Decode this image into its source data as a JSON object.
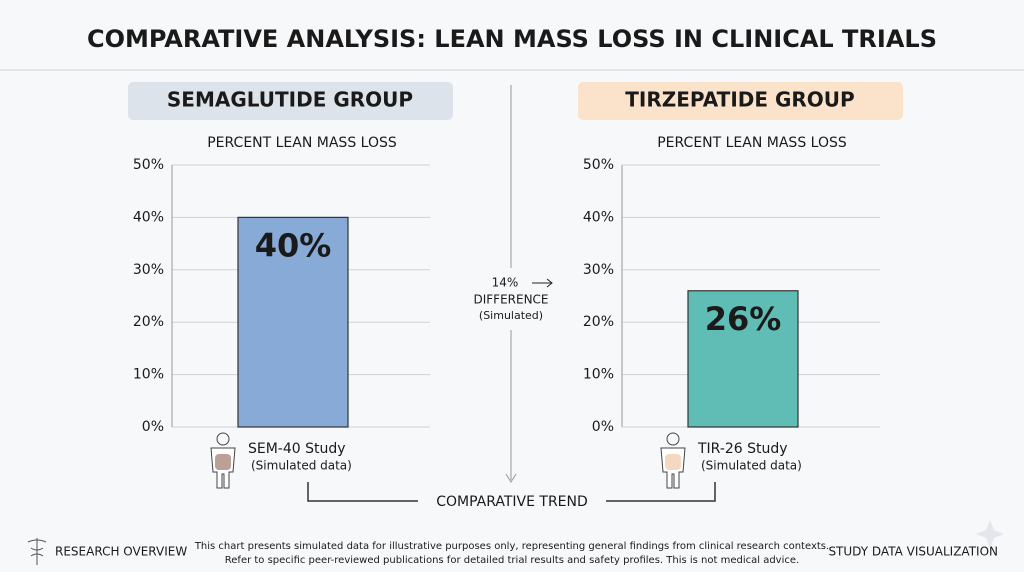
{
  "header": {
    "title": "COMPARATIVE ANALYSIS: LEAN MASS LOSS IN CLINICAL TRIALS"
  },
  "chart_data": [
    {
      "type": "bar",
      "group": "SEMAGLUTIDE GROUP",
      "title": "PERCENT LEAN MASS LOSS",
      "categories": [
        "SEM-40 Study"
      ],
      "category_notes": [
        "(Simulated data)"
      ],
      "values": [
        40
      ],
      "value_labels": [
        "40%"
      ],
      "color": "#88aad6",
      "header_color": "#dde3ea",
      "ylim": [
        0,
        50
      ],
      "yticks": [
        {
          "value": 0,
          "label": "0%"
        },
        {
          "value": 10,
          "label": "10%"
        },
        {
          "value": 20,
          "label": "20%"
        },
        {
          "value": 30,
          "label": "30%"
        },
        {
          "value": 40,
          "label": "40%"
        },
        {
          "value": 50,
          "label": "50%"
        }
      ],
      "grid": true
    },
    {
      "type": "bar",
      "group": "TIRZEPATIDE GROUP",
      "title": "PERCENT LEAN MASS LOSS",
      "categories": [
        "TIR-26 Study"
      ],
      "category_notes": [
        "(Simulated data)"
      ],
      "values": [
        26
      ],
      "value_labels": [
        "26%"
      ],
      "color": "#5fbdb5",
      "header_color": "#fbe3cb",
      "ylim": [
        0,
        50
      ],
      "yticks": [
        {
          "value": 0,
          "label": "0%"
        },
        {
          "value": 10,
          "label": "10%"
        },
        {
          "value": 20,
          "label": "20%"
        },
        {
          "value": 30,
          "label": "30%"
        },
        {
          "value": 40,
          "label": "40%"
        },
        {
          "value": 50,
          "label": "50%"
        }
      ],
      "grid": true
    }
  ],
  "comparison": {
    "difference": "14%",
    "label": "DIFFERENCE",
    "note": "(Simulated)",
    "trend": "COMPARATIVE TREND"
  },
  "footer": {
    "left": "RESEARCH OVERVIEW",
    "disclaimer": [
      "This chart presents simulated data for illustrative purposes only, representing general findings from clinical research contexts.",
      "Refer to specific peer-reviewed publications for detailed trial results and safety profiles. This is not medical advice."
    ],
    "right": "STUDY DATA VISUALIZATION"
  }
}
